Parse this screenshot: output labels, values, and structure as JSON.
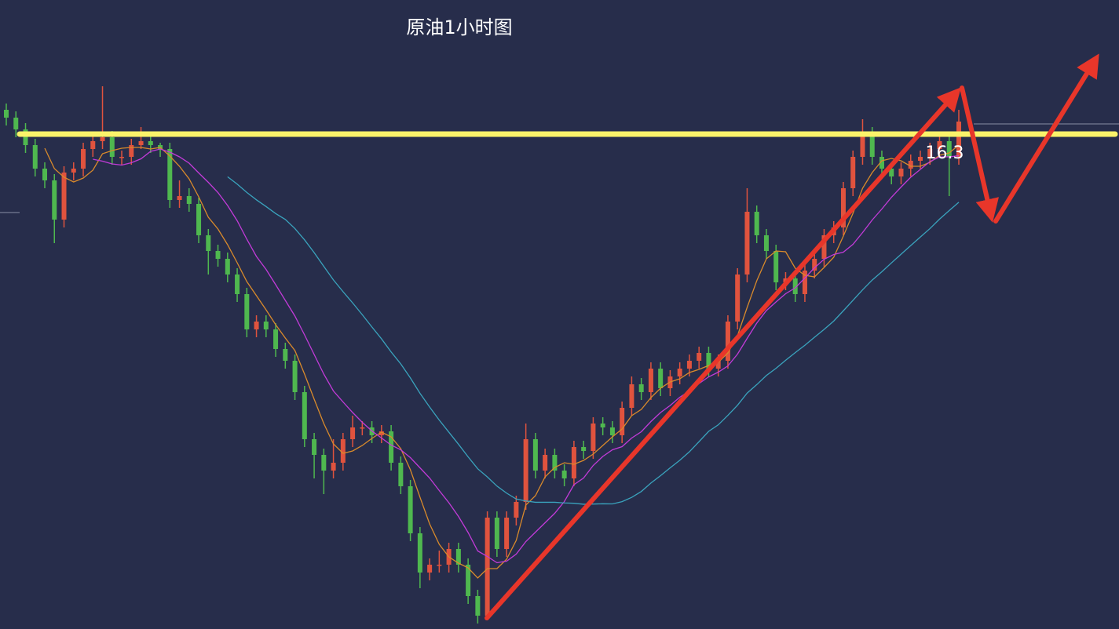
{
  "chart_data": {
    "type": "candlestick",
    "title": "原油1小时图",
    "ylim": [
      9.99,
      18.01
    ],
    "level": 16.3,
    "level_color": "#fbf36a",
    "up_color": "#e0533e",
    "down_color": "#4fb84f",
    "ma_colors": [
      "#d98a2b",
      "#c23bd8",
      "#3aa3bd"
    ],
    "open": [
      16.61,
      16.51,
      16.36,
      16.16,
      15.86,
      15.71,
      15.21,
      15.81,
      15.86,
      16.11,
      16.21,
      16.26,
      16.01,
      16.01,
      16.16,
      16.21,
      16.16,
      16.11,
      15.46,
      15.51,
      15.41,
      15.01,
      14.81,
      14.71,
      14.51,
      14.26,
      13.81,
      13.91,
      13.81,
      13.56,
      13.41,
      13.01,
      12.41,
      12.21,
      12.01,
      12.11,
      12.41,
      12.56,
      12.56,
      12.46,
      12.51,
      12.11,
      11.81,
      11.21,
      10.71,
      10.81,
      10.81,
      11.01,
      10.81,
      10.41,
      10.16,
      11.41,
      11.01,
      11.41,
      11.61,
      12.41,
      12.01,
      12.21,
      12.01,
      11.91,
      12.31,
      12.26,
      12.61,
      12.56,
      12.46,
      12.81,
      13.11,
      13.01,
      13.31,
      13.06,
      13.21,
      13.31,
      13.41,
      13.51,
      13.31,
      13.41,
      13.91,
      14.51,
      15.31,
      15.01,
      14.81,
      14.41,
      14.46,
      14.26,
      14.56,
      14.71,
      15.01,
      15.11,
      15.61,
      16.01,
      16.31,
      16.01,
      15.86,
      15.76,
      15.86,
      15.96,
      16.01,
      16.11,
      16.21,
      16.01
    ],
    "high": [
      16.69,
      16.59,
      16.44,
      16.24,
      15.94,
      15.79,
      15.89,
      15.94,
      16.19,
      16.29,
      16.91,
      16.34,
      16.09,
      16.24,
      16.39,
      16.29,
      16.19,
      16.19,
      15.71,
      15.61,
      15.49,
      15.09,
      14.89,
      14.79,
      14.59,
      14.34,
      13.99,
      13.99,
      13.89,
      13.64,
      13.49,
      13.09,
      12.49,
      12.29,
      12.41,
      12.49,
      12.71,
      12.64,
      12.64,
      12.59,
      12.59,
      12.19,
      11.89,
      11.29,
      10.89,
      10.99,
      11.09,
      11.09,
      10.89,
      10.49,
      11.49,
      11.49,
      11.49,
      11.69,
      12.61,
      12.49,
      12.29,
      12.29,
      12.09,
      12.39,
      12.39,
      12.69,
      12.69,
      12.64,
      12.89,
      13.21,
      13.19,
      13.39,
      13.39,
      13.29,
      13.39,
      13.49,
      13.59,
      13.59,
      13.49,
      13.99,
      14.59,
      15.61,
      15.39,
      15.09,
      14.89,
      14.54,
      14.54,
      14.64,
      14.79,
      15.09,
      15.19,
      15.69,
      16.09,
      16.49,
      16.39,
      16.09,
      15.94,
      15.94,
      16.04,
      16.09,
      16.19,
      16.29,
      16.29,
      16.61
    ],
    "low": [
      16.41,
      16.26,
      16.06,
      15.76,
      15.61,
      14.91,
      15.11,
      15.71,
      15.76,
      16.01,
      16.11,
      15.91,
      15.91,
      15.91,
      16.11,
      16.06,
      16.01,
      15.36,
      15.36,
      15.31,
      14.91,
      14.51,
      14.61,
      14.41,
      14.16,
      13.71,
      13.71,
      13.71,
      13.46,
      13.31,
      12.91,
      12.31,
      11.91,
      11.71,
      11.91,
      12.01,
      12.31,
      12.46,
      12.36,
      12.36,
      12.01,
      11.71,
      11.11,
      10.51,
      10.61,
      10.71,
      10.71,
      10.71,
      10.31,
      10.06,
      10.11,
      10.91,
      10.91,
      11.31,
      11.51,
      11.91,
      11.91,
      11.91,
      11.81,
      11.81,
      12.16,
      12.16,
      12.46,
      12.36,
      12.36,
      12.71,
      12.91,
      12.91,
      12.96,
      12.96,
      13.11,
      13.21,
      13.31,
      13.21,
      13.21,
      13.31,
      13.81,
      14.41,
      14.91,
      14.71,
      14.31,
      14.31,
      14.16,
      14.16,
      14.46,
      14.61,
      14.91,
      15.01,
      15.51,
      15.91,
      15.91,
      15.76,
      15.66,
      15.66,
      15.76,
      15.86,
      15.91,
      16.01,
      15.51,
      15.91
    ],
    "close": [
      16.51,
      16.36,
      16.16,
      15.86,
      15.71,
      15.21,
      15.81,
      15.86,
      16.11,
      16.21,
      16.26,
      16.01,
      16.01,
      16.16,
      16.21,
      16.16,
      16.11,
      15.46,
      15.51,
      15.41,
      15.01,
      14.81,
      14.71,
      14.51,
      14.26,
      13.81,
      13.91,
      13.81,
      13.56,
      13.41,
      13.01,
      12.41,
      12.21,
      12.01,
      12.11,
      12.41,
      12.56,
      12.56,
      12.46,
      12.51,
      12.11,
      11.81,
      11.21,
      10.71,
      10.81,
      10.81,
      11.01,
      10.81,
      10.41,
      10.16,
      11.41,
      11.01,
      11.41,
      11.61,
      12.41,
      12.01,
      12.21,
      12.01,
      11.91,
      12.31,
      12.26,
      12.61,
      12.56,
      12.46,
      12.81,
      13.11,
      13.01,
      13.31,
      13.06,
      13.21,
      13.31,
      13.41,
      13.51,
      13.31,
      13.41,
      13.91,
      14.51,
      15.31,
      15.01,
      14.81,
      14.41,
      14.46,
      14.26,
      14.56,
      14.71,
      15.01,
      15.11,
      15.61,
      16.01,
      16.31,
      16.01,
      15.86,
      15.76,
      15.86,
      15.96,
      16.01,
      16.11,
      16.21,
      16.01,
      16.46
    ]
  }
}
